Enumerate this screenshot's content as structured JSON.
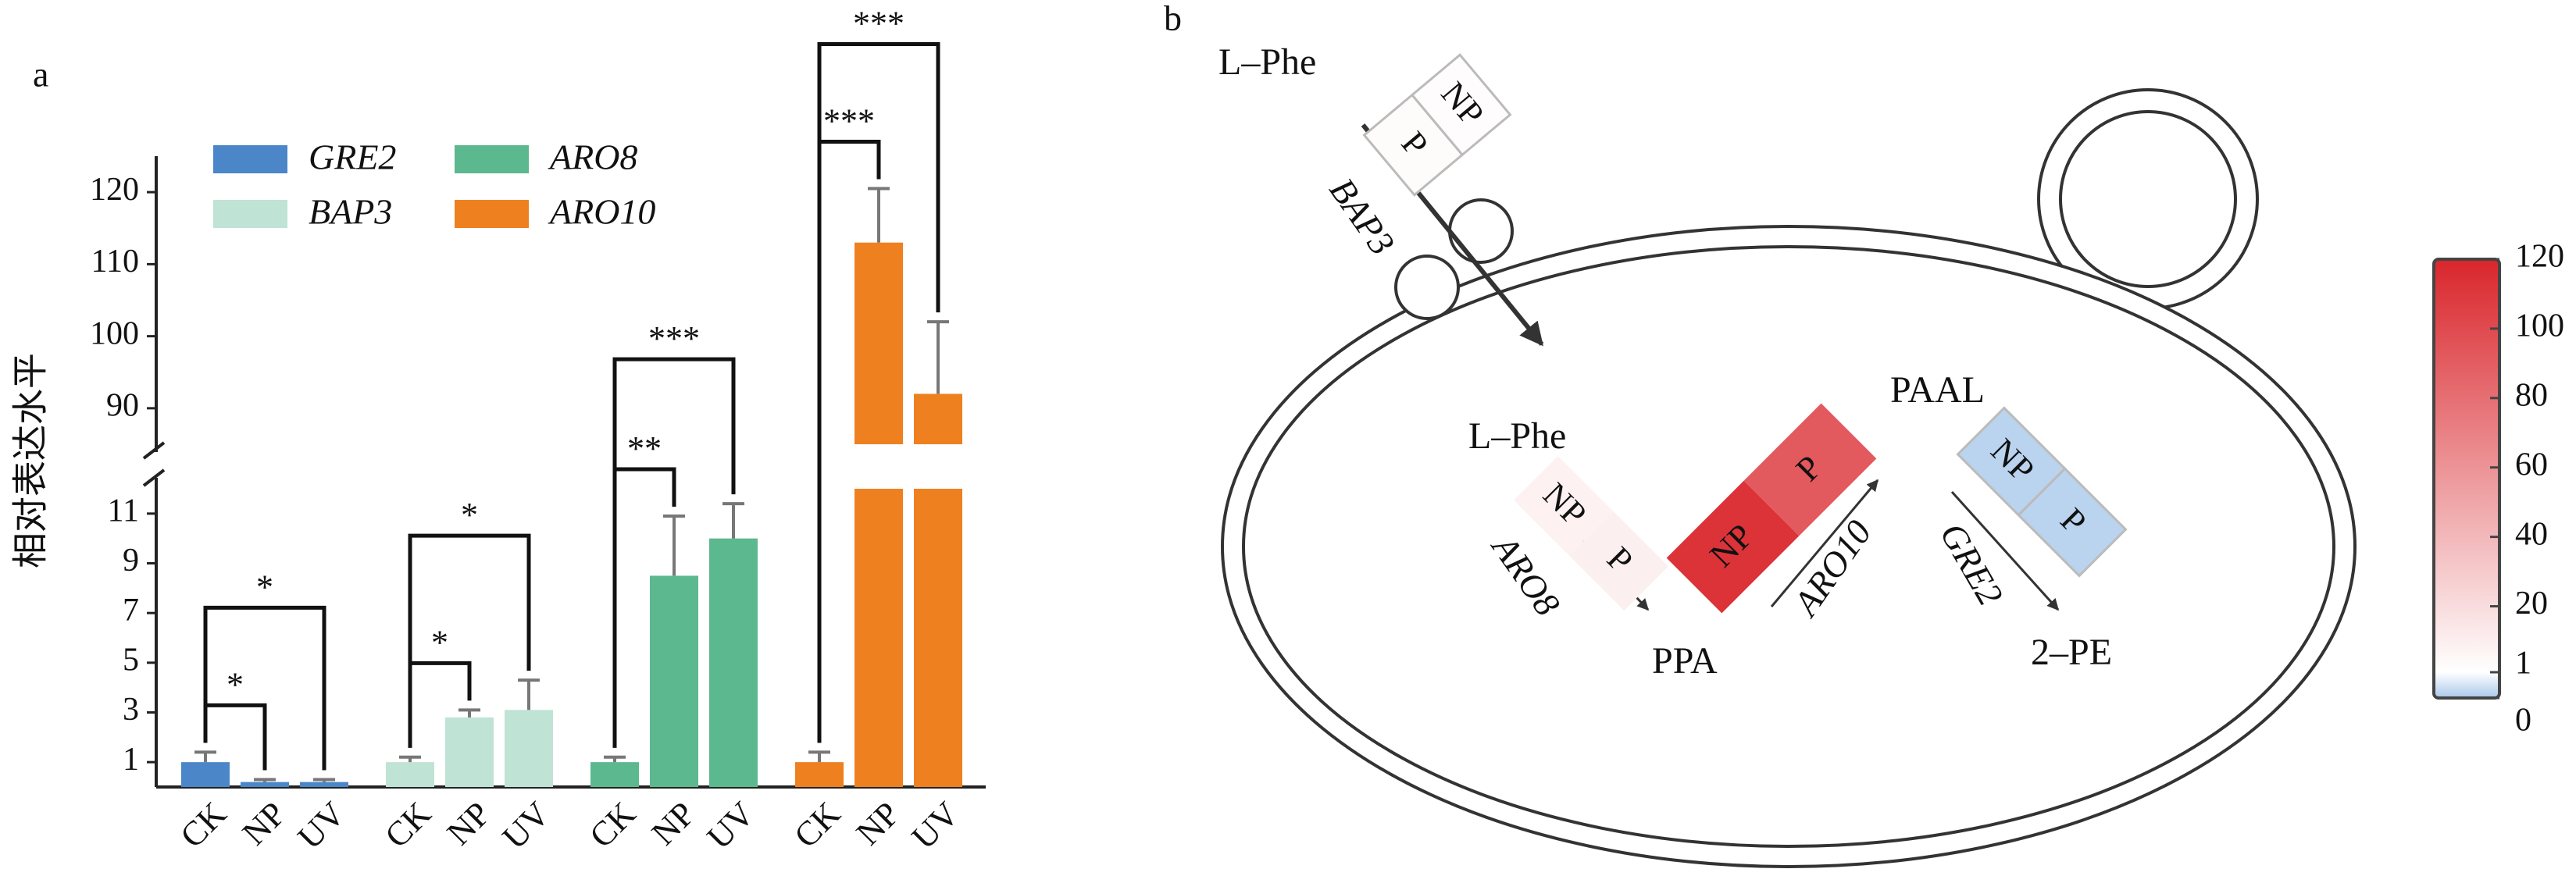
{
  "panel_a": "a",
  "panel_b": "b",
  "chart_data": [
    {
      "type": "bar",
      "y_label": "相对表达水平",
      "categories": [
        "CK",
        "NP",
        "UV"
      ],
      "series": [
        {
          "name": "GRE2",
          "color": "#4a86c8",
          "values": [
            1,
            0.2,
            0.2
          ],
          "errors": [
            0.4,
            0.1,
            0.1
          ],
          "significance": [
            {
              "from": 0,
              "to": 1,
              "label": "*"
            },
            {
              "from": 0,
              "to": 2,
              "label": "*"
            }
          ]
        },
        {
          "name": "BAP3",
          "color": "#bfe3d5",
          "values": [
            1,
            2.8,
            3.1
          ],
          "errors": [
            0.2,
            0.3,
            1.2
          ],
          "significance": [
            {
              "from": 0,
              "to": 1,
              "label": "*"
            },
            {
              "from": 0,
              "to": 2,
              "label": "*"
            }
          ]
        },
        {
          "name": "ARO8",
          "color": "#5cb88e",
          "values": [
            1,
            8.5,
            10
          ],
          "errors": [
            0.2,
            2.4,
            1.4
          ],
          "significance": [
            {
              "from": 0,
              "to": 1,
              "label": "**"
            },
            {
              "from": 0,
              "to": 2,
              "label": "***"
            }
          ]
        },
        {
          "name": "ARO10",
          "color": "#ee8020",
          "values": [
            1,
            113,
            92
          ],
          "errors": [
            0.4,
            7.5,
            10
          ],
          "significance": [
            {
              "from": 0,
              "to": 1,
              "label": "***"
            },
            {
              "from": 0,
              "to": 2,
              "label": "***"
            }
          ]
        }
      ],
      "ylim": [
        0,
        125
      ],
      "y_break": [
        12,
        85
      ],
      "yticks": [
        1,
        3,
        5,
        7,
        9,
        11,
        90,
        100,
        110,
        120
      ]
    },
    {
      "type": "colorbar",
      "ylim": [
        0,
        120
      ],
      "yticks": [
        0,
        1,
        20,
        40,
        60,
        80,
        100,
        120
      ],
      "color_stops": [
        {
          "value": 0,
          "color": "#a9c8ea"
        },
        {
          "value": 1,
          "color": "#ffffff"
        },
        {
          "value": 120,
          "color": "#d9262c"
        }
      ]
    }
  ],
  "diagram": {
    "metabolites": [
      "L–Phe",
      "L–Phe",
      "PPA",
      "PAAL",
      "2–PE"
    ],
    "treatments": [
      "NP",
      "P"
    ]
  }
}
